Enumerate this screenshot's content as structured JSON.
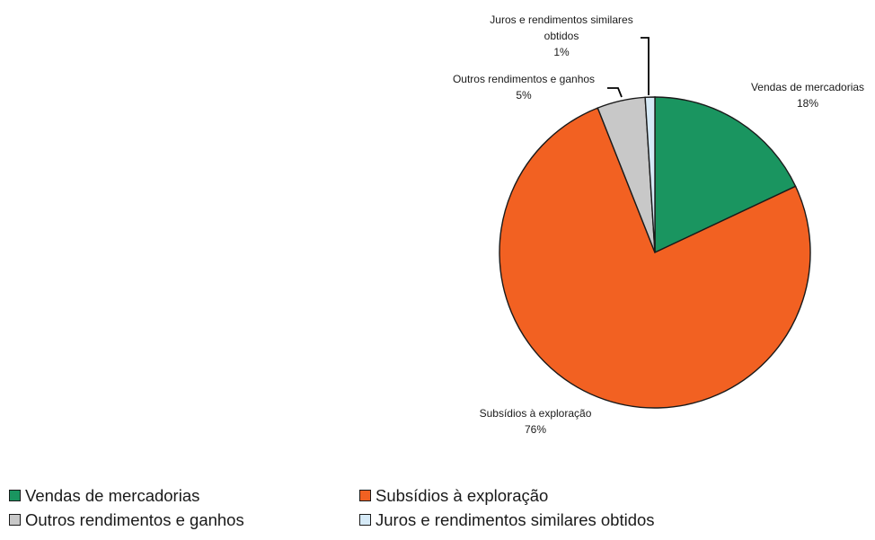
{
  "chart_data": {
    "type": "pie",
    "start_angle_deg": 0,
    "direction": "clockwise",
    "series": [
      {
        "name": "",
        "slices": [
          {
            "label": "Vendas de mercadorias",
            "value": 18,
            "value_label": "18%",
            "color": "#1a9560"
          },
          {
            "label": "Subsídios à exploração",
            "value": 76,
            "value_label": "76%",
            "color": "#f26122"
          },
          {
            "label": "Outros rendimentos e ganhos",
            "value": 5,
            "value_label": "5%",
            "color": "#c8c8c8"
          },
          {
            "label": "Juros e rendimentos similares obtidos",
            "value": 1,
            "value_label": "1%",
            "color": "#d6eaf7"
          }
        ]
      }
    ],
    "data_labels": [
      {
        "lines": [
          "Vendas de mercadorias",
          "18%"
        ]
      },
      {
        "lines": [
          "Subsídios à exploração",
          "76%"
        ]
      },
      {
        "lines": [
          "Outros rendimentos e ganhos",
          "5%"
        ]
      },
      {
        "lines": [
          "Juros e rendimentos similares",
          "obtidos",
          "1%"
        ]
      }
    ],
    "legend": {
      "position": "bottom",
      "items": [
        "Vendas de mercadorias",
        "Subsídios à exploração",
        "Outros rendimentos e ganhos",
        "Juros e rendimentos similares obtidos"
      ]
    }
  }
}
